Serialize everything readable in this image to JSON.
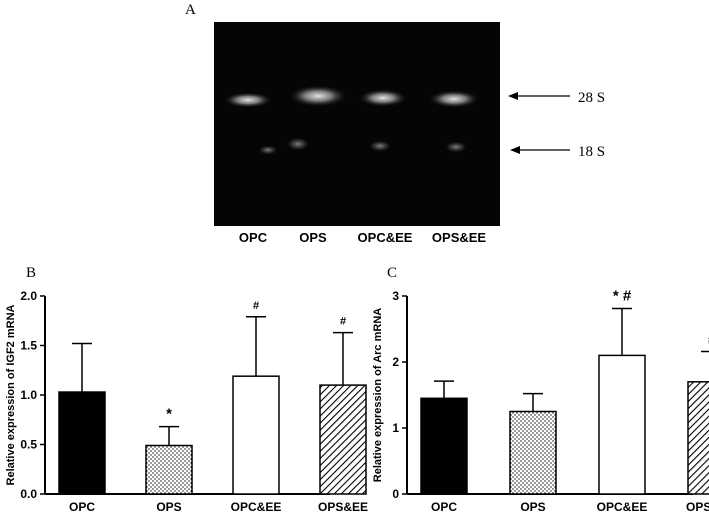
{
  "panel_a": {
    "letter": "A",
    "lanes": [
      "OPC",
      "OPS",
      "OPC&EE",
      "OPS&EE"
    ],
    "bands": [
      "28 S",
      "18 S"
    ]
  },
  "chart_data": [
    {
      "type": "bar",
      "panel": "B",
      "ylabel": "Relative expression of IGF2 mRNA",
      "xlabel": "",
      "categories": [
        "OPC",
        "OPS",
        "OPC&EE",
        "OPS&EE"
      ],
      "values": [
        1.03,
        0.49,
        1.19,
        1.1
      ],
      "errors": [
        0.49,
        0.19,
        0.6,
        0.53
      ],
      "annotations": [
        "",
        "*",
        "#",
        "#"
      ],
      "fills": [
        "solid",
        "dots",
        "empty",
        "diagonal"
      ],
      "ylim": [
        0,
        2.0
      ],
      "yticks": [
        "0.0",
        "0.5",
        "1.0",
        "1.5",
        "2.0"
      ],
      "ytick_values": [
        0,
        0.5,
        1.0,
        1.5,
        2.0
      ]
    },
    {
      "type": "bar",
      "panel": "C",
      "ylabel": "Relative expression of Arc mRNA",
      "xlabel": "",
      "categories": [
        "OPC",
        "OPS",
        "OPC&EE",
        "OPS&EE"
      ],
      "values": [
        1.45,
        1.25,
        2.1,
        1.7
      ],
      "errors": [
        0.26,
        0.27,
        0.71,
        0.46
      ],
      "annotations": [
        "",
        "",
        "* #",
        "#"
      ],
      "fills": [
        "solid",
        "dots",
        "empty",
        "diagonal"
      ],
      "ylim": [
        0,
        3
      ],
      "yticks": [
        "0",
        "1",
        "2",
        "3"
      ],
      "ytick_values": [
        0,
        1,
        2,
        3
      ]
    }
  ]
}
